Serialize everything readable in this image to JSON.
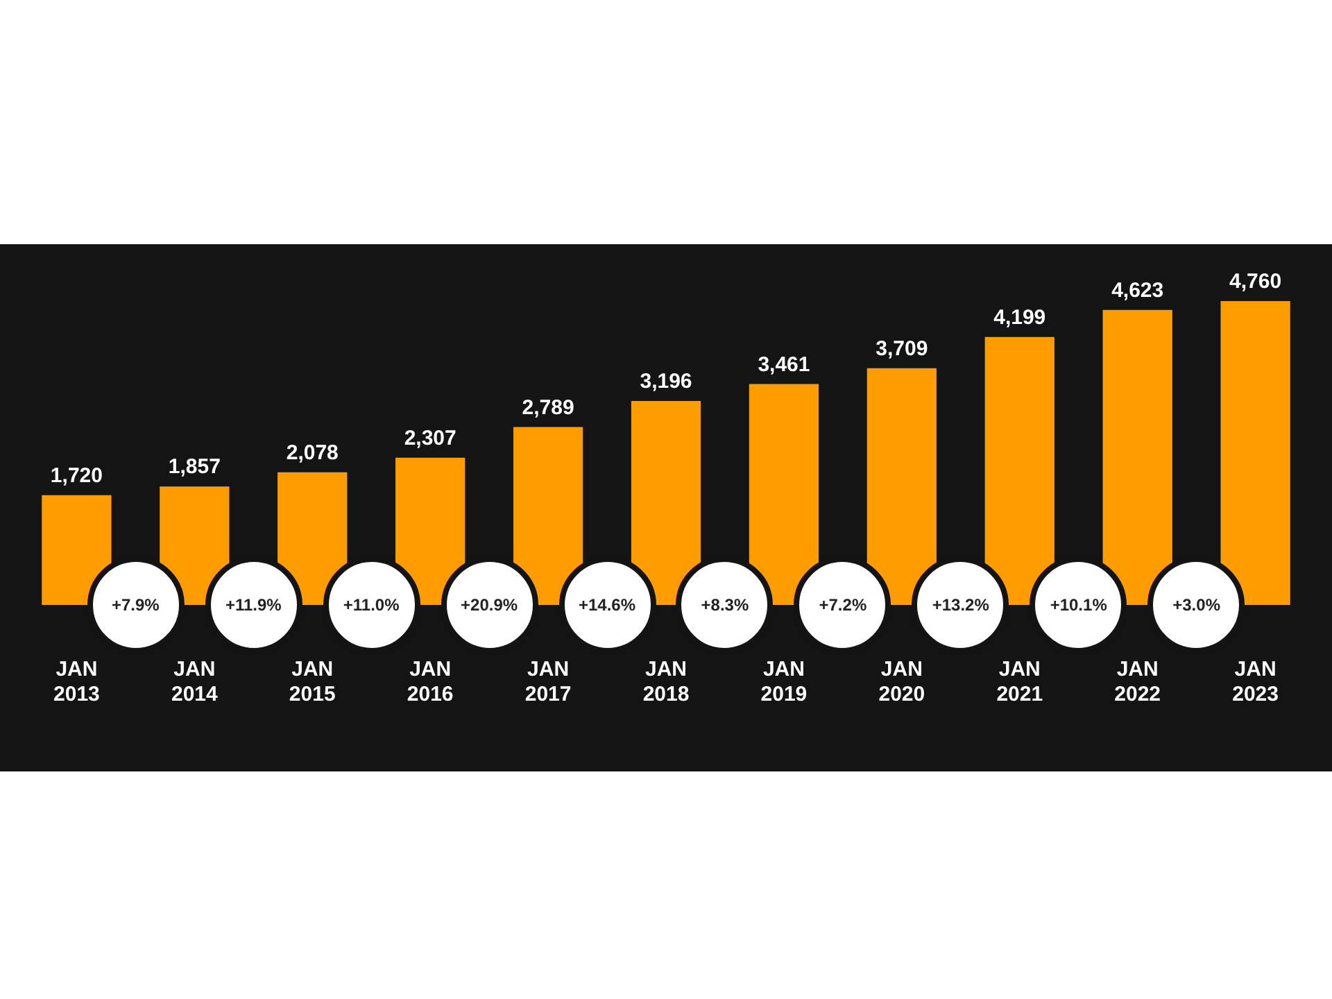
{
  "chart_data": {
    "type": "bar",
    "categories": [
      "JAN 2013",
      "JAN 2014",
      "JAN 2015",
      "JAN 2016",
      "JAN 2017",
      "JAN 2018",
      "JAN 2019",
      "JAN 2020",
      "JAN 2021",
      "JAN 2022",
      "JAN 2023"
    ],
    "values": [
      1720,
      1857,
      2078,
      2307,
      2789,
      3196,
      3461,
      3709,
      4199,
      4623,
      4760
    ],
    "color": "#ff9c00",
    "value_labels": [
      "1,720",
      "1,857",
      "2,078",
      "2,307",
      "2,789",
      "3,196",
      "3,461",
      "3,709",
      "4,199",
      "4,623",
      "4,760"
    ],
    "tick_labels": "x",
    "legend": false,
    "annotations": [
      "+7.9%",
      "+11.9%",
      "+11.0%",
      "+20.9%",
      "+14.6%",
      "+8.3%",
      "+7.2%",
      "+13.2%",
      "+10.1%",
      "+3.0%"
    ]
  }
}
